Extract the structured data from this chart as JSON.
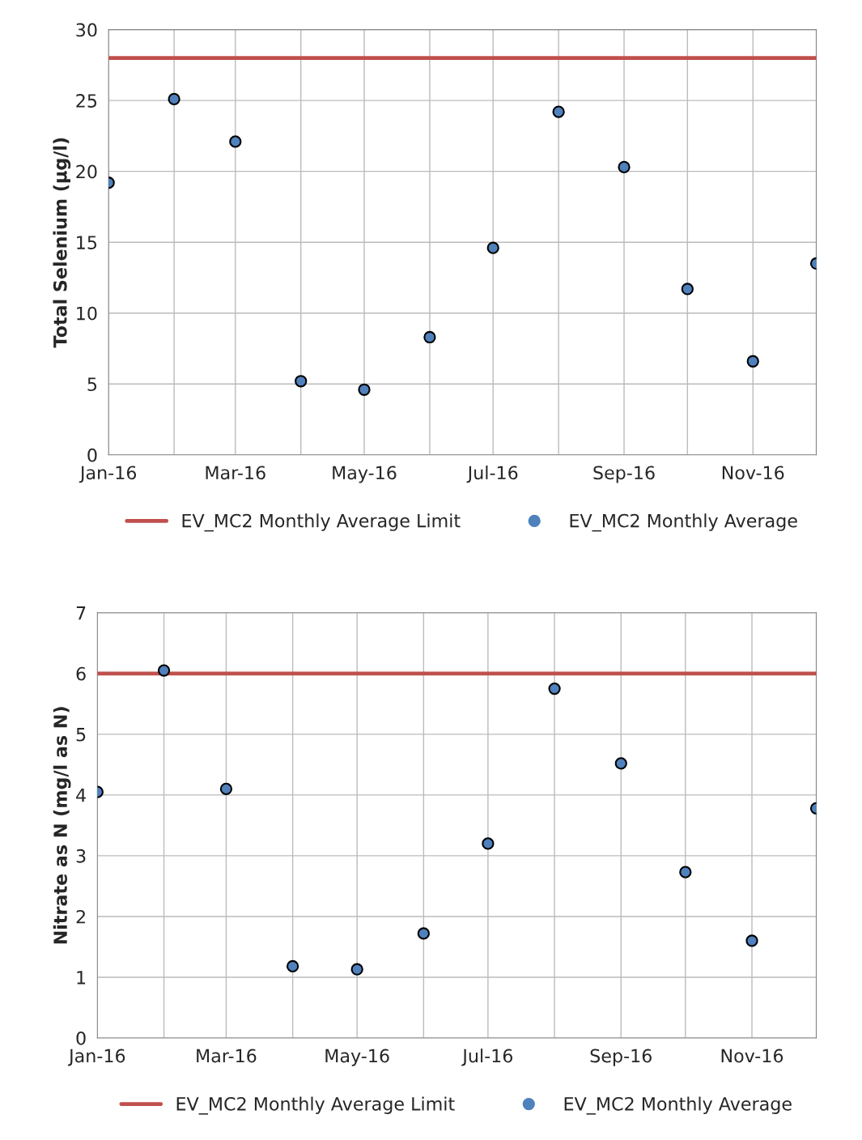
{
  "chart_data": [
    {
      "type": "scatter",
      "ylabel": "Total Selenium (µg/l)",
      "xlim": [
        "2016-01-01",
        "2016-12-01"
      ],
      "xticks": [
        {
          "value": "2016-01-01",
          "label": "Jan-16"
        },
        {
          "value": "2016-02-01",
          "label": null
        },
        {
          "value": "2016-03-01",
          "label": "Mar-16"
        },
        {
          "value": "2016-04-01",
          "label": null
        },
        {
          "value": "2016-05-01",
          "label": "May-16"
        },
        {
          "value": "2016-06-01",
          "label": null
        },
        {
          "value": "2016-07-01",
          "label": "Jul-16"
        },
        {
          "value": "2016-08-01",
          "label": null
        },
        {
          "value": "2016-09-01",
          "label": "Sep-16"
        },
        {
          "value": "2016-10-01",
          "label": null
        },
        {
          "value": "2016-11-01",
          "label": "Nov-16"
        },
        {
          "value": "2016-12-01",
          "label": null
        }
      ],
      "ylim": [
        0,
        30
      ],
      "yticks": [
        0,
        5,
        10,
        15,
        20,
        25,
        30
      ],
      "grid": true,
      "legend": "bottom",
      "marker": "circle",
      "series": [
        {
          "name": "EV_MC2 Monthly Average Limit",
          "type": "line",
          "color": "#c0504d",
          "line_style": "solid",
          "marker": "none",
          "x": [
            "2016-01-01",
            "2016-12-01"
          ],
          "values": [
            28,
            28
          ]
        },
        {
          "name": "EV_MC2 Monthly Average",
          "color": "#4f81bd",
          "x": [
            "2016-01-01",
            "2016-02-01",
            "2016-03-01",
            "2016-04-01",
            "2016-05-01",
            "2016-06-01",
            "2016-07-01",
            "2016-08-01",
            "2016-09-01",
            "2016-10-01",
            "2016-11-01",
            "2016-12-01"
          ],
          "values": [
            19.2,
            25.1,
            22.1,
            5.2,
            4.6,
            8.3,
            14.6,
            24.2,
            20.3,
            11.7,
            6.6,
            13.5
          ]
        }
      ]
    },
    {
      "type": "scatter",
      "ylabel": "Nitrate as N (mg/l as N)",
      "xlim": [
        "2016-01-01",
        "2016-12-01"
      ],
      "xticks": [
        {
          "value": "2016-01-01",
          "label": "Jan-16"
        },
        {
          "value": "2016-02-01",
          "label": null
        },
        {
          "value": "2016-03-01",
          "label": "Mar-16"
        },
        {
          "value": "2016-04-01",
          "label": null
        },
        {
          "value": "2016-05-01",
          "label": "May-16"
        },
        {
          "value": "2016-06-01",
          "label": null
        },
        {
          "value": "2016-07-01",
          "label": "Jul-16"
        },
        {
          "value": "2016-08-01",
          "label": null
        },
        {
          "value": "2016-09-01",
          "label": "Sep-16"
        },
        {
          "value": "2016-10-01",
          "label": null
        },
        {
          "value": "2016-11-01",
          "label": "Nov-16"
        },
        {
          "value": "2016-12-01",
          "label": null
        }
      ],
      "ylim": [
        0,
        7
      ],
      "yticks": [
        0,
        1,
        2,
        3,
        4,
        5,
        6,
        7
      ],
      "grid": true,
      "legend": "bottom",
      "marker": "circle",
      "series": [
        {
          "name": "EV_MC2 Monthly Average Limit",
          "type": "line",
          "color": "#c0504d",
          "line_style": "solid",
          "marker": "none",
          "x": [
            "2016-01-01",
            "2016-12-01"
          ],
          "values": [
            6,
            6
          ]
        },
        {
          "name": "EV_MC2 Monthly Average",
          "color": "#4f81bd",
          "x": [
            "2016-01-01",
            "2016-02-01",
            "2016-03-01",
            "2016-04-01",
            "2016-05-01",
            "2016-06-01",
            "2016-07-01",
            "2016-08-01",
            "2016-09-01",
            "2016-10-01",
            "2016-11-01",
            "2016-12-01"
          ],
          "values": [
            4.05,
            6.05,
            4.1,
            1.18,
            1.13,
            1.72,
            3.2,
            5.75,
            4.52,
            2.73,
            1.6,
            3.78
          ]
        }
      ]
    }
  ]
}
